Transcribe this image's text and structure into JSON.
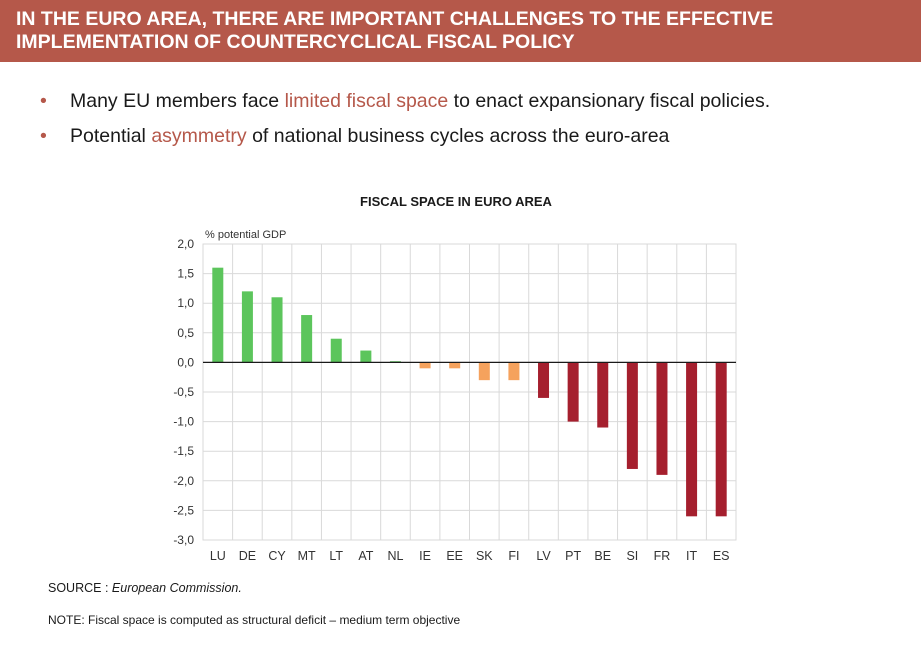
{
  "header": {
    "title_line1": "IN THE EURO AREA, THERE ARE IMPORTANT CHALLENGES TO THE EFFECTIVE",
    "title_line2": "IMPLEMENTATION OF COUNTERCYCLICAL FISCAL POLICY"
  },
  "bullets": {
    "b1_pre": "Many EU members face ",
    "b1_hl": "limited fiscal space",
    "b1_post": " to enact expansionary fiscal policies.",
    "b2_pre": "Potential ",
    "b2_hl": "asymmetry",
    "b2_post": " of national business cycles across the euro-area"
  },
  "colors": {
    "brand": "#b5584a",
    "positive": "#5cc55c",
    "slightly_negative": "#f5a25d",
    "negative": "#a51f2e"
  },
  "chart_data": {
    "type": "bar",
    "title": "FISCAL SPACE IN EURO AREA",
    "ylabel": "% potential GDP",
    "xlabel": "",
    "ylim": [
      -3.0,
      2.0
    ],
    "yticks": [
      "2,0",
      "1,5",
      "1,0",
      "0,5",
      "0,0",
      "-0,5",
      "-1,0",
      "-1,5",
      "-2,0",
      "-2,5",
      "-3,0"
    ],
    "grid": true,
    "categories": [
      "LU",
      "DE",
      "CY",
      "MT",
      "LT",
      "AT",
      "NL",
      "IE",
      "EE",
      "SK",
      "FI",
      "LV",
      "PT",
      "BE",
      "SI",
      "FR",
      "IT",
      "ES"
    ],
    "values": [
      1.6,
      1.2,
      1.1,
      0.8,
      0.4,
      0.2,
      0.02,
      -0.1,
      -0.1,
      -0.3,
      -0.3,
      -0.6,
      -1.0,
      -1.1,
      -1.8,
      -1.9,
      -2.6,
      -2.6
    ]
  },
  "footer": {
    "source_label": "SOURCE : ",
    "source_value": "European Commission.",
    "note": "NOTE: Fiscal space is computed as structural deficit – medium term objective"
  }
}
